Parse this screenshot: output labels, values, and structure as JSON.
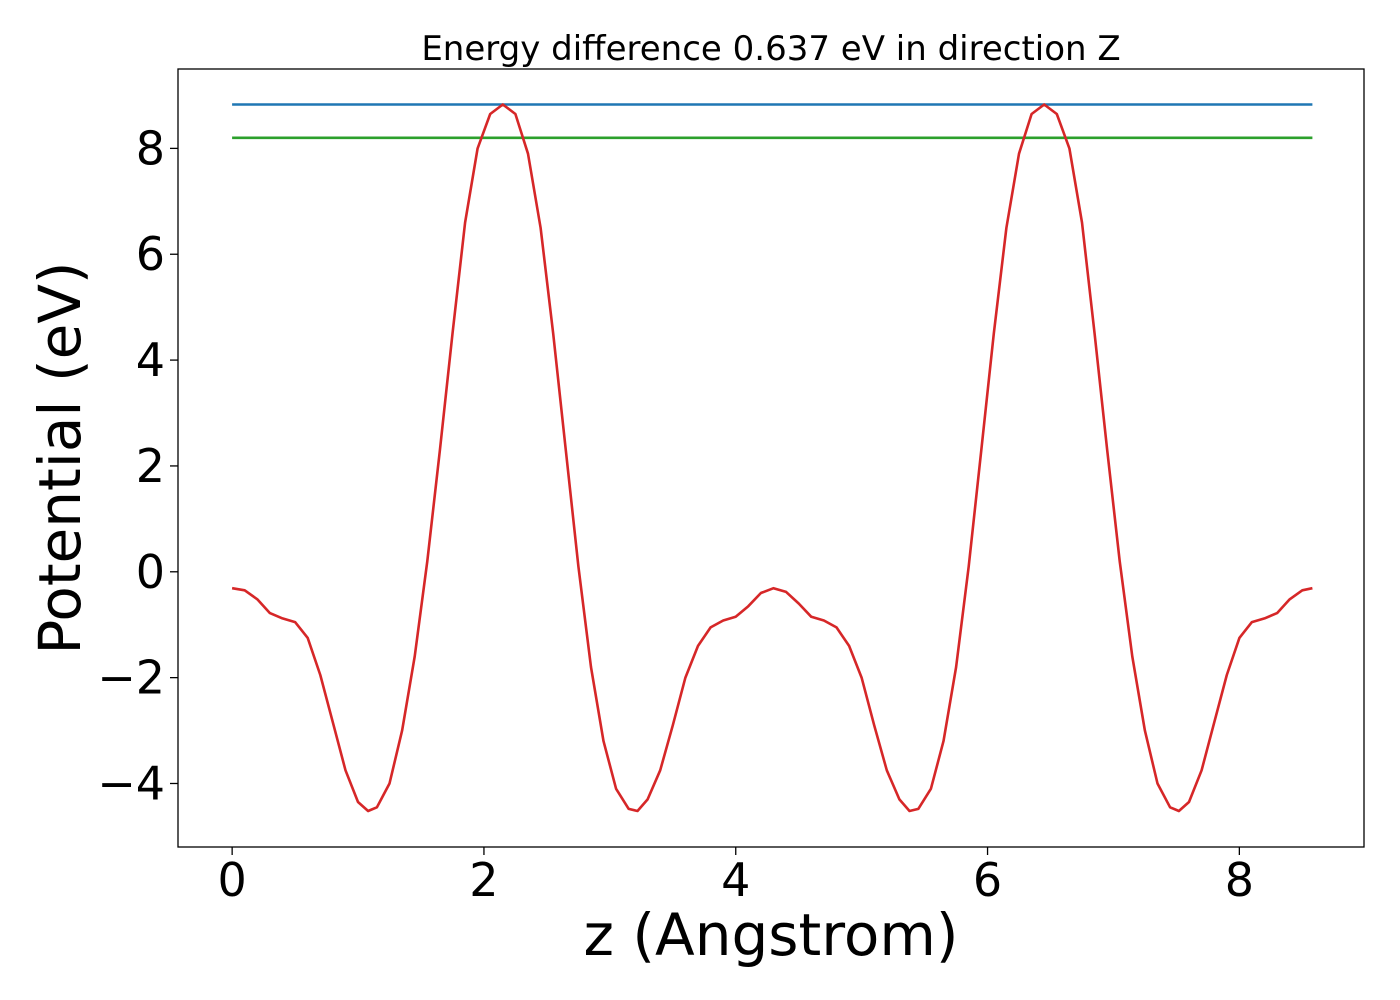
{
  "chart_data": {
    "type": "line",
    "title": "Energy difference 0.637 eV in direction Z",
    "xlabel": "z (Angstrom)",
    "ylabel": "Potential (eV)",
    "xlim": [
      -0.43,
      8.99
    ],
    "ylim": [
      -5.2,
      9.5
    ],
    "xticks": [
      0,
      2,
      4,
      6,
      8
    ],
    "xtick_labels": [
      "0",
      "2",
      "4",
      "6",
      "8"
    ],
    "yticks": [
      -4,
      -2,
      0,
      2,
      4,
      6,
      8
    ],
    "ytick_labels": [
      "−4",
      "−2",
      "0",
      "2",
      "4",
      "6",
      "8"
    ],
    "grid": false,
    "legend": false,
    "series": [
      {
        "color": "#d62728",
        "points": [
          [
            0.0,
            -0.31
          ],
          [
            0.1,
            -0.35
          ],
          [
            0.2,
            -0.52
          ],
          [
            0.3,
            -0.78
          ],
          [
            0.4,
            -0.88
          ],
          [
            0.5,
            -0.95
          ],
          [
            0.6,
            -1.25
          ],
          [
            0.7,
            -1.95
          ],
          [
            0.8,
            -2.85
          ],
          [
            0.9,
            -3.75
          ],
          [
            1.0,
            -4.35
          ],
          [
            1.08,
            -4.52
          ],
          [
            1.15,
            -4.45
          ],
          [
            1.25,
            -4.0
          ],
          [
            1.35,
            -3.0
          ],
          [
            1.45,
            -1.6
          ],
          [
            1.55,
            0.2
          ],
          [
            1.65,
            2.3
          ],
          [
            1.75,
            4.5
          ],
          [
            1.85,
            6.6
          ],
          [
            1.95,
            8.0
          ],
          [
            2.05,
            8.65
          ],
          [
            2.15,
            8.83
          ],
          [
            2.25,
            8.65
          ],
          [
            2.35,
            7.9
          ],
          [
            2.45,
            6.5
          ],
          [
            2.55,
            4.5
          ],
          [
            2.65,
            2.3
          ],
          [
            2.75,
            0.1
          ],
          [
            2.85,
            -1.8
          ],
          [
            2.95,
            -3.2
          ],
          [
            3.05,
            -4.1
          ],
          [
            3.15,
            -4.48
          ],
          [
            3.22,
            -4.52
          ],
          [
            3.3,
            -4.3
          ],
          [
            3.4,
            -3.75
          ],
          [
            3.5,
            -2.9
          ],
          [
            3.6,
            -2.0
          ],
          [
            3.7,
            -1.4
          ],
          [
            3.8,
            -1.05
          ],
          [
            3.9,
            -0.92
          ],
          [
            4.0,
            -0.85
          ],
          [
            4.1,
            -0.65
          ],
          [
            4.2,
            -0.4
          ],
          [
            4.3,
            -0.31
          ],
          [
            4.4,
            -0.38
          ],
          [
            4.5,
            -0.6
          ],
          [
            4.6,
            -0.85
          ],
          [
            4.7,
            -0.92
          ],
          [
            4.8,
            -1.05
          ],
          [
            4.9,
            -1.4
          ],
          [
            5.0,
            -2.0
          ],
          [
            5.1,
            -2.9
          ],
          [
            5.2,
            -3.75
          ],
          [
            5.3,
            -4.3
          ],
          [
            5.38,
            -4.52
          ],
          [
            5.45,
            -4.48
          ],
          [
            5.55,
            -4.1
          ],
          [
            5.65,
            -3.2
          ],
          [
            5.75,
            -1.8
          ],
          [
            5.85,
            0.1
          ],
          [
            5.95,
            2.3
          ],
          [
            6.05,
            4.5
          ],
          [
            6.15,
            6.5
          ],
          [
            6.25,
            7.9
          ],
          [
            6.35,
            8.65
          ],
          [
            6.45,
            8.83
          ],
          [
            6.55,
            8.65
          ],
          [
            6.65,
            8.0
          ],
          [
            6.75,
            6.6
          ],
          [
            6.85,
            4.5
          ],
          [
            6.95,
            2.3
          ],
          [
            7.05,
            0.2
          ],
          [
            7.15,
            -1.6
          ],
          [
            7.25,
            -3.0
          ],
          [
            7.35,
            -4.0
          ],
          [
            7.45,
            -4.45
          ],
          [
            7.52,
            -4.52
          ],
          [
            7.6,
            -4.35
          ],
          [
            7.7,
            -3.75
          ],
          [
            7.8,
            -2.85
          ],
          [
            7.9,
            -1.95
          ],
          [
            8.0,
            -1.25
          ],
          [
            8.1,
            -0.95
          ],
          [
            8.2,
            -0.88
          ],
          [
            8.3,
            -0.78
          ],
          [
            8.4,
            -0.52
          ],
          [
            8.5,
            -0.35
          ],
          [
            8.58,
            -0.31
          ]
        ]
      },
      {
        "color": "#1f77b4",
        "points": [
          [
            0.0,
            8.83
          ],
          [
            8.58,
            8.83
          ]
        ]
      },
      {
        "color": "#2ca02c",
        "points": [
          [
            0.0,
            8.2
          ],
          [
            8.58,
            8.2
          ]
        ]
      }
    ]
  }
}
